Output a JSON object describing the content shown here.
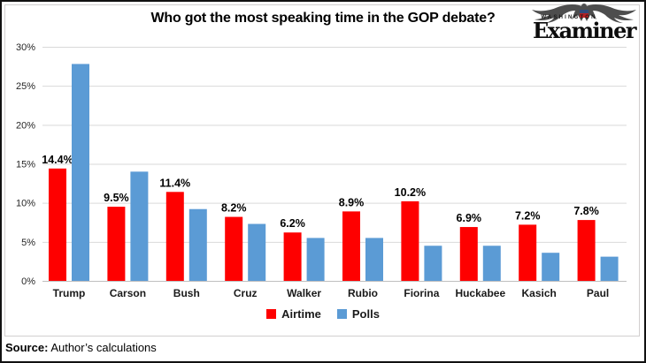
{
  "header": {
    "title": "Who got the most speaking time in the GOP debate?",
    "logo": {
      "top": "WASHINGTON",
      "name": "Examiner"
    }
  },
  "chart_data": {
    "type": "bar",
    "title": "Who got the most speaking time in the GOP debate?",
    "categories": [
      "Trump",
      "Carson",
      "Bush",
      "Cruz",
      "Walker",
      "Rubio",
      "Fiorina",
      "Huckabee",
      "Kasich",
      "Paul"
    ],
    "series": [
      {
        "name": "Airtime",
        "color": "#fe0000",
        "show_labels": true,
        "values": [
          14.4,
          9.5,
          11.4,
          8.2,
          6.2,
          8.9,
          10.2,
          6.9,
          7.2,
          7.8
        ]
      },
      {
        "name": "Polls",
        "color": "#5b9bd5",
        "show_labels": false,
        "values": [
          27.8,
          14.0,
          9.2,
          7.3,
          5.5,
          5.5,
          4.5,
          4.5,
          3.6,
          3.1
        ]
      }
    ],
    "xlabel": "",
    "ylabel": "",
    "ylim": [
      0,
      30
    ],
    "yticks": [
      "0%",
      "5%",
      "10%",
      "15%",
      "20%",
      "25%",
      "30%"
    ],
    "grid": true,
    "gridline_color": "#d9d9d9",
    "axis_line_color": "#bfbfbf",
    "legend_position": "bottom"
  },
  "footer": {
    "source_label": "Source:",
    "source_text": "Author’s calculations"
  }
}
